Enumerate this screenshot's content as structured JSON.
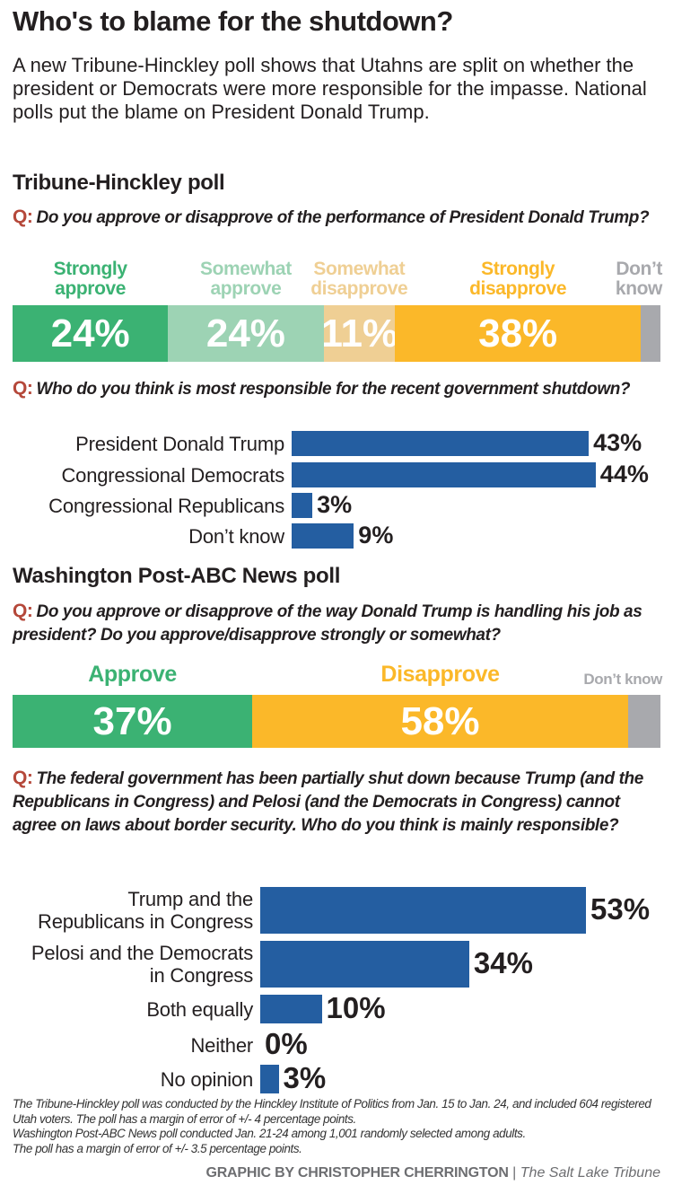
{
  "title": "Who's to blame for the shutdown?",
  "subtitle": "A new Tribune-Hinckley poll shows that Utahns are split on whether the president or Democrats were more responsible for the impasse. National polls put the blame on President Donald Trump.",
  "q_marker": "Q:",
  "colors": {
    "strong_approve": "#3bb273",
    "some_approve": "#9dd3b4",
    "some_disapprove": "#efcf94",
    "strong_disapprove": "#fbb829",
    "dont_know": "#a8a9ad",
    "bar": "#245ea1",
    "q": "#b5483a"
  },
  "chart_data": [
    {
      "type": "bar",
      "orientation": "stacked-horizontal",
      "section": "Tribune-Hinckley poll",
      "title": "Do you approve or disapprove of the performance of President Donald Trump?",
      "categories": [
        "Strongly approve",
        "Somewhat approve",
        "Somewhat disapprove",
        "Strongly disapprove",
        "Don’t know"
      ],
      "values": [
        24,
        24,
        11,
        38,
        3
      ],
      "labels": [
        "24%",
        "24%",
        "11%",
        "38%",
        ""
      ]
    },
    {
      "type": "bar",
      "orientation": "horizontal",
      "title": "Who do you think is most responsible for the recent government shutdown?",
      "categories": [
        "President Donald Trump",
        "Congressional Democrats",
        "Congressional Republicans",
        "Don’t know"
      ],
      "values": [
        43,
        44,
        3,
        9
      ],
      "labels": [
        "43%",
        "44%",
        "3%",
        "9%"
      ]
    },
    {
      "type": "bar",
      "orientation": "stacked-horizontal",
      "section": "Washington Post-ABC News poll",
      "title": "Do you approve or disapprove of the way Donald Trump is handling his job as president? Do you approve/disapprove strongly or somewhat?",
      "categories": [
        "Approve",
        "Disapprove",
        "Don’t know"
      ],
      "values": [
        37,
        58,
        5
      ],
      "labels": [
        "37%",
        "58%",
        ""
      ]
    },
    {
      "type": "bar",
      "orientation": "horizontal",
      "title": "The federal government has been partially shut down because Trump (and the Republicans in Congress) and Pelosi (and the Democrats in Congress) cannot agree on laws about border security. Who do you think is mainly responsible?",
      "categories": [
        "Trump and the Republicans in Congress",
        "Pelosi and the Democrats in Congress",
        "Both equally",
        "Neither",
        "No opinion"
      ],
      "values": [
        53,
        34,
        10,
        0,
        3
      ],
      "labels": [
        "53%",
        "34%",
        "10%",
        "0%",
        "3%"
      ]
    }
  ],
  "footnotes": [
    "The Tribune-Hinckley poll was conducted by the Hinckley Institute of Politics from Jan. 15 to Jan. 24, and included 604 registered Utah voters. The poll has a margin of error of +/- 4 percentage points.",
    "Washington Post-ABC News poll conducted Jan. 21-24 among 1,001 randomly selected among adults.",
    "The poll has a margin of error of +/- 3.5 percentage points."
  ],
  "credit": {
    "byline": "GRAPHIC BY CHRISTOPHER CHERRINGTON",
    "separator": "|",
    "publication": "The Salt Lake Tribune"
  }
}
